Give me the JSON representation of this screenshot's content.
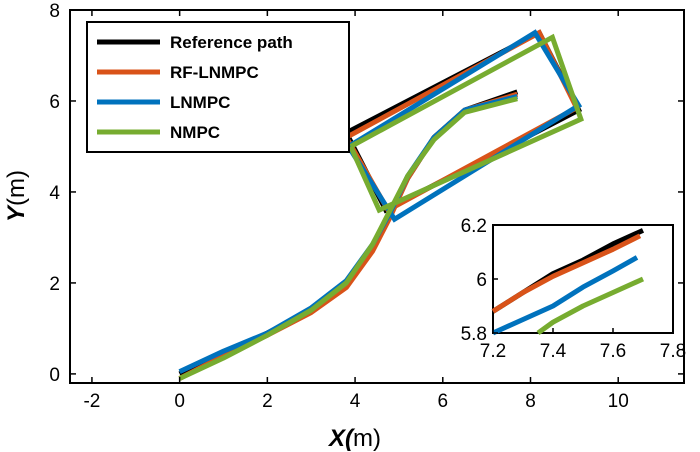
{
  "chart_data": [
    {
      "type": "line",
      "title": "",
      "xlabel": {
        "var": "X",
        "paren": "(",
        "unit": "m)"
      },
      "ylabel": {
        "var": "Y",
        "unit": "(m)"
      },
      "xlim": [
        -2.5,
        11.5
      ],
      "ylim": [
        -0.2,
        8
      ],
      "xticks": [
        -2,
        0,
        2,
        4,
        6,
        8,
        10
      ],
      "yticks": [
        0,
        2,
        4,
        6,
        8
      ],
      "grid": false,
      "legend_position": "top-left",
      "series": [
        {
          "name": "Reference path",
          "color": "#000000",
          "x": [
            0,
            1,
            2,
            3,
            3.8,
            4.4,
            4.8,
            5.2,
            5.8,
            6.5,
            7.7
          ],
          "y": [
            0,
            0.45,
            0.9,
            1.4,
            2.0,
            2.8,
            3.5,
            4.3,
            5.2,
            5.8,
            6.2
          ],
          "outline": {
            "x": [
              3.8,
              8.2,
              9.1,
              4.7,
              3.8
            ],
            "y": [
              5.3,
              7.5,
              5.8,
              3.6,
              5.3
            ]
          }
        },
        {
          "name": "RF-LNMPC",
          "color": "#D95319",
          "x": [
            0,
            1,
            2,
            3,
            3.8,
            4.4,
            4.8,
            5.2,
            5.8,
            6.5,
            7.7
          ],
          "y": [
            -0.1,
            0.4,
            0.85,
            1.35,
            1.9,
            2.7,
            3.45,
            4.3,
            5.2,
            5.8,
            6.15
          ],
          "outline": {
            "x": [
              3.8,
              8.2,
              9.05,
              4.75,
              3.8
            ],
            "y": [
              5.2,
              7.5,
              5.85,
              3.6,
              5.2
            ]
          }
        },
        {
          "name": "LNMPC",
          "color": "#0072BD",
          "x": [
            0,
            1,
            2,
            3,
            3.8,
            4.4,
            4.8,
            5.2,
            5.8,
            6.5,
            7.7
          ],
          "y": [
            0.05,
            0.5,
            0.9,
            1.45,
            2.05,
            2.85,
            3.55,
            4.35,
            5.2,
            5.8,
            6.1
          ],
          "outline": {
            "x": [
              3.85,
              8.1,
              9.1,
              4.9,
              3.85
            ],
            "y": [
              5.0,
              7.5,
              5.9,
              3.4,
              5.0
            ]
          }
        },
        {
          "name": "NMPC",
          "color": "#77AC30",
          "x": [
            0,
            1,
            2,
            3,
            3.8,
            4.4,
            4.8,
            5.2,
            5.8,
            6.5,
            7.7
          ],
          "y": [
            -0.1,
            0.35,
            0.85,
            1.4,
            2.0,
            2.85,
            3.6,
            4.35,
            5.15,
            5.75,
            6.05
          ],
          "outline": {
            "x": [
              3.9,
              8.5,
              9.15,
              4.55,
              3.9
            ],
            "y": [
              5.0,
              7.4,
              5.6,
              3.6,
              5.0
            ]
          }
        }
      ]
    },
    {
      "type": "line",
      "title": "",
      "xlim": [
        7.2,
        7.8
      ],
      "ylim": [
        5.8,
        6.2
      ],
      "xticks": [
        7.2,
        7.4,
        7.6,
        7.8
      ],
      "yticks": [
        5.8,
        6,
        6.2
      ],
      "xtick_labels": [
        "7.2",
        "7.4",
        "7.6",
        "7.8"
      ],
      "ytick_labels": [
        "5.8",
        "6",
        "6.2"
      ],
      "grid": false,
      "series": [
        {
          "name": "Reference path",
          "color": "#000000",
          "x": [
            7.2,
            7.3,
            7.4,
            7.5,
            7.6,
            7.7
          ],
          "y": [
            5.88,
            5.95,
            6.02,
            6.07,
            6.13,
            6.18
          ]
        },
        {
          "name": "RF-LNMPC",
          "color": "#D95319",
          "x": [
            7.2,
            7.3,
            7.4,
            7.5,
            7.6,
            7.69
          ],
          "y": [
            5.88,
            5.95,
            6.01,
            6.06,
            6.11,
            6.16
          ]
        },
        {
          "name": "LNMPC",
          "color": "#0072BD",
          "x": [
            7.2,
            7.3,
            7.4,
            7.5,
            7.6,
            7.68
          ],
          "y": [
            5.8,
            5.85,
            5.9,
            5.97,
            6.03,
            6.08
          ]
        },
        {
          "name": "NMPC",
          "color": "#77AC30",
          "x": [
            7.35,
            7.4,
            7.5,
            7.6,
            7.7
          ],
          "y": [
            5.8,
            5.84,
            5.9,
            5.95,
            6.0
          ]
        }
      ]
    }
  ]
}
